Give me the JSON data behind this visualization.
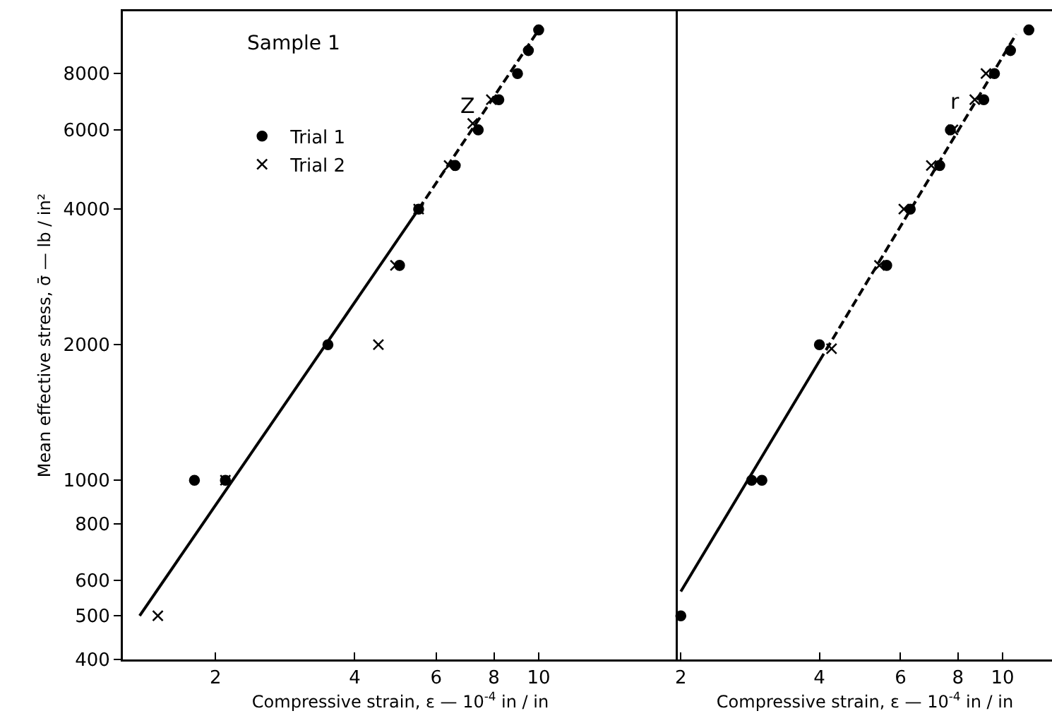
{
  "chart_data": [
    {
      "type": "scatter",
      "xlabel": "Compressive strain, ε — 10$^{-4}$ in / in",
      "ylabel": "Mean effective stress, σ̄ — lb / in²",
      "log": "xy",
      "grid": false,
      "legend": "top left",
      "xlim": [
        1.26,
        20
      ],
      "xticks": [
        2,
        4,
        6,
        8,
        10
      ],
      "ylim": [
        400,
        11000
      ],
      "yticks": [
        400,
        500,
        600,
        800,
        1000,
        2000,
        4000,
        6000,
        8000
      ],
      "annotations": [
        "Sample 1",
        "Z"
      ],
      "series": [
        {
          "name": "Trial 1",
          "marker": "circle",
          "color": "#000000",
          "x": [
            10,
            9.5,
            9,
            8.2,
            7.4,
            6.6,
            5.5,
            5,
            3.5,
            1.8,
            2.1
          ],
          "values": [
            10000,
            9000,
            8000,
            7000,
            6000,
            5000,
            4000,
            3000,
            2000,
            1000,
            1000
          ]
        },
        {
          "name": "Trial 2",
          "marker": "cross",
          "color": "#000000",
          "x": [
            7.9,
            7.2,
            6.4,
            5.5,
            4.9,
            4.5,
            2.1,
            1.5
          ],
          "values": [
            7000,
            6200,
            5000,
            4000,
            3000,
            2000,
            1000,
            500
          ]
        },
        {
          "type": "line",
          "marker": "none",
          "line_style": "solid",
          "color": "#000000",
          "x": [
            1.37,
            5.5
          ],
          "values": [
            500,
            4000
          ]
        },
        {
          "type": "line",
          "marker": "none",
          "line_style": "dashed",
          "color": "#000000",
          "x": [
            5.5,
            10
          ],
          "values": [
            4000,
            10000
          ]
        }
      ]
    },
    {
      "type": "scatter",
      "xlabel": "Compressive strain, ε — 10$^{-4}$ in / in",
      "log": "xy",
      "grid": false,
      "tick_labels": "x",
      "xlim": [
        1.97,
        12.8
      ],
      "xticks": [
        2,
        4,
        6,
        8,
        10
      ],
      "ylim": [
        400,
        11000
      ],
      "yticks": [
        400,
        500,
        600,
        800,
        1000,
        2000,
        4000,
        6000,
        8000
      ],
      "annotations": [
        "r"
      ],
      "series": [
        {
          "marker": "circle",
          "color": "#000000",
          "x": [
            11.4,
            10.4,
            9.6,
            9.1,
            7.7,
            7.3,
            6.3,
            5.6,
            4,
            2.85,
            3,
            2
          ],
          "values": [
            10000,
            9000,
            8000,
            7000,
            6000,
            5000,
            4000,
            3000,
            2000,
            1000,
            1000,
            500
          ]
        },
        {
          "marker": "cross",
          "color": "#000000",
          "x": [
            9.2,
            8.7,
            7.8,
            7,
            6.1,
            5.4,
            4.25
          ],
          "values": [
            8000,
            7000,
            6000,
            5000,
            4000,
            3000,
            1960
          ]
        },
        {
          "type": "line",
          "marker": "none",
          "line_style": "solid",
          "color": "#000000",
          "x": [
            2,
            4
          ],
          "values": [
            566,
            1840
          ]
        },
        {
          "type": "line",
          "marker": "none",
          "line_style": "dashed",
          "color": "#000000",
          "x": [
            4,
            10.7
          ],
          "values": [
            1840,
            9780
          ]
        }
      ]
    }
  ]
}
